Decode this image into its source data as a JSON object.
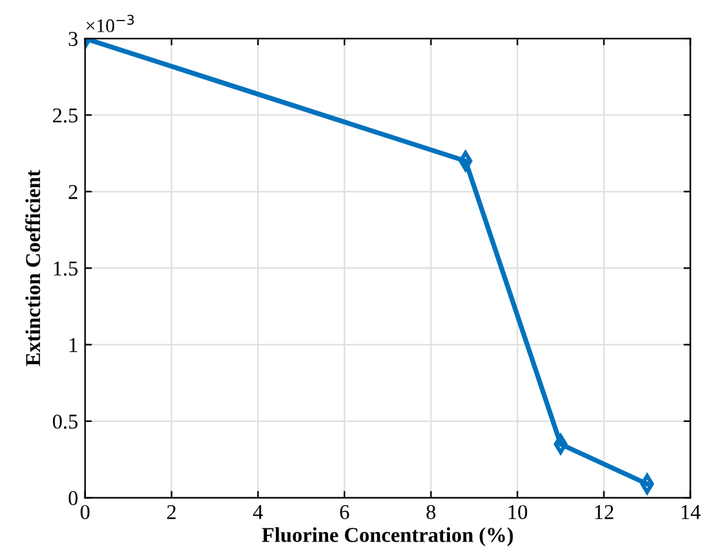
{
  "chart_data": {
    "type": "line",
    "xlabel": "Fluorine Concentration (%)",
    "ylabel": "Extinction Coefficient",
    "annotations": [
      "×10$^{−3}$"
    ],
    "x": [
      0,
      8.8,
      11,
      13
    ],
    "series": [
      {
        "color": "#0072bd",
        "values": [
          3,
          2.2,
          0.35,
          0.09
        ]
      }
    ],
    "xlim": [
      0,
      14
    ],
    "xticks": [
      0,
      2,
      4,
      6,
      8,
      10,
      12,
      14
    ],
    "ylim": [
      0,
      3
    ],
    "yticks": [
      0,
      0.5,
      1,
      1.5,
      2,
      2.5,
      3
    ],
    "grid": true,
    "marker": "diamond",
    "line_style": "solid"
  }
}
